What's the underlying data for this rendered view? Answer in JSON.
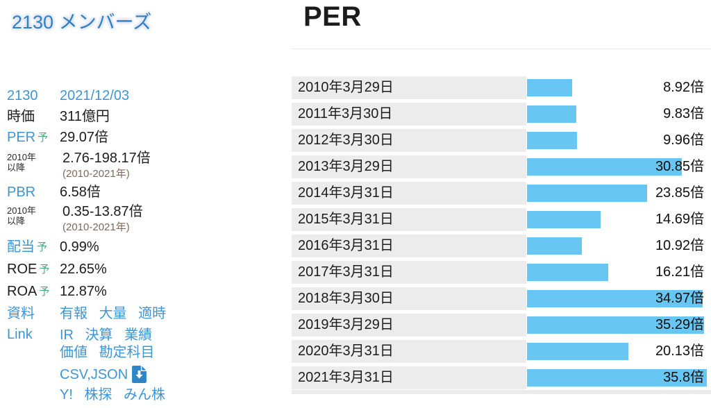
{
  "page": {
    "title": "2130 メンバーズ",
    "section_title": "PER"
  },
  "accents": {
    "link_blue": "#3d95d5",
    "title_blue": "#2e80c4",
    "forecast_green": "#4fa381",
    "note_brown": "#7d6a5c",
    "bar_blue": "#67c6f2",
    "label_cell_gray": "#ececec"
  },
  "sidebar": {
    "code": "2130",
    "as_of_date": "2021/12/03",
    "market_cap_label": "時価",
    "market_cap_value": "311億円",
    "per_label": "PER",
    "forecast_mark": "予",
    "per_value": "29.07倍",
    "since_label_line1": "2010年",
    "since_label_line2": "以降",
    "per_range_value": "2.76-198.17倍",
    "per_range_note": "(2010-2021年)",
    "pbr_label": "PBR",
    "pbr_value": "6.58倍",
    "pbr_range_value": "0.35-13.87倍",
    "pbr_range_note": "(2010-2021年)",
    "dividend_label": "配当",
    "dividend_value": "0.99%",
    "roe_label": "ROE",
    "roe_value": "22.65%",
    "roa_label": "ROA",
    "roa_value": "12.87%",
    "docs_label": "資料",
    "docs_links": [
      "有報",
      "大量",
      "適時"
    ],
    "link_label": "Link",
    "links_row1": [
      "IR",
      "決算",
      "業績"
    ],
    "links_row2": [
      "価値",
      "勘定科目"
    ],
    "csv_json_label": "CSV,JSON",
    "external_links": [
      "Y!",
      "株探",
      "みん株"
    ]
  },
  "chart_data": {
    "type": "bar",
    "orientation": "horizontal",
    "title": "PER",
    "unit": "倍",
    "categories": [
      "2010年3月29日",
      "2011年3月30日",
      "2012年3月30日",
      "2013年3月29日",
      "2014年3月31日",
      "2015年3月31日",
      "2016年3月31日",
      "2017年3月31日",
      "2018年3月30日",
      "2019年3月29日",
      "2020年3月31日",
      "2021年3月31日"
    ],
    "values": [
      8.92,
      9.83,
      9.96,
      30.85,
      23.85,
      14.69,
      10.92,
      16.21,
      34.97,
      35.29,
      20.13,
      35.8
    ],
    "value_labels": [
      "8.92倍",
      "9.83倍",
      "9.96倍",
      "30.85倍",
      "23.85倍",
      "14.69倍",
      "10.92倍",
      "16.21倍",
      "34.97倍",
      "35.29倍",
      "20.13倍",
      "35.8倍"
    ],
    "xlim": [
      0,
      35.8
    ],
    "grid": false,
    "legend": false,
    "bar_color": "#67c6f2",
    "row_bg_color": "#ececec"
  }
}
